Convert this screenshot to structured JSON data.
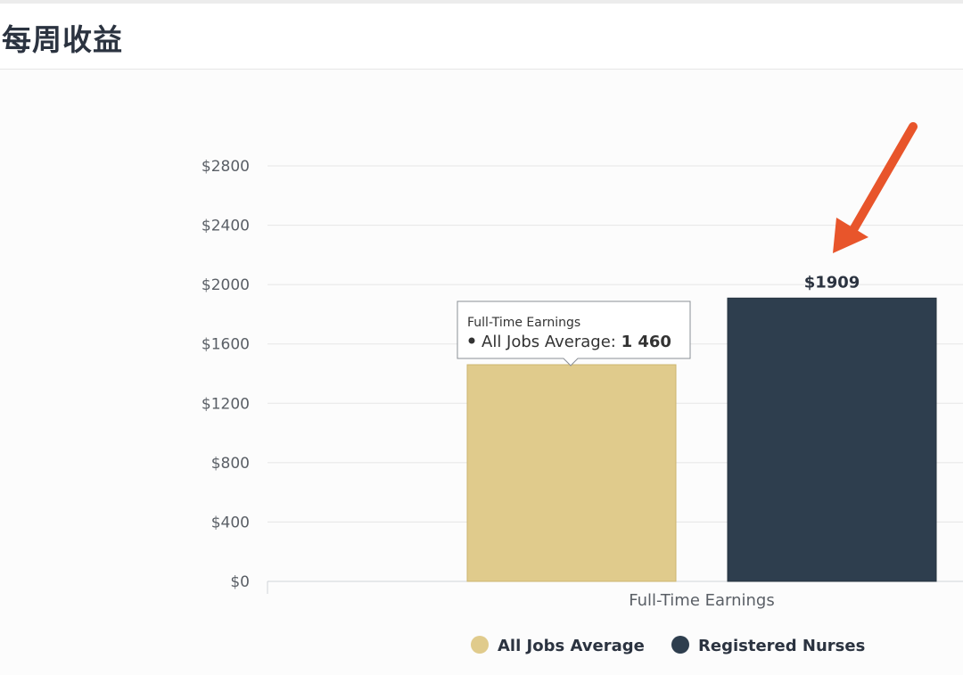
{
  "header": {
    "title": "每周收益"
  },
  "chart_data": {
    "type": "bar",
    "categories": [
      "Full-Time Earnings"
    ],
    "series": [
      {
        "name": "All Jobs Average",
        "values": [
          1460
        ],
        "color": "#e0cb8c"
      },
      {
        "name": "Registered Nurses",
        "values": [
          1909
        ],
        "color": "#2e3e4e"
      }
    ],
    "ylim": [
      0,
      2800
    ],
    "yticks": [
      "$0",
      "$400",
      "$800",
      "$1200",
      "$1600",
      "$2000",
      "$2400",
      "$2800"
    ],
    "grid": true,
    "legend": "bottom",
    "data_labels": {
      "Registered Nurses": "$1909"
    },
    "tooltip": {
      "title": "Full-Time Earnings",
      "series": "All Jobs Average",
      "value_text": "1 460"
    },
    "annotation": {
      "type": "arrow",
      "color": "#e8552b",
      "target": "Registered Nurses"
    }
  }
}
